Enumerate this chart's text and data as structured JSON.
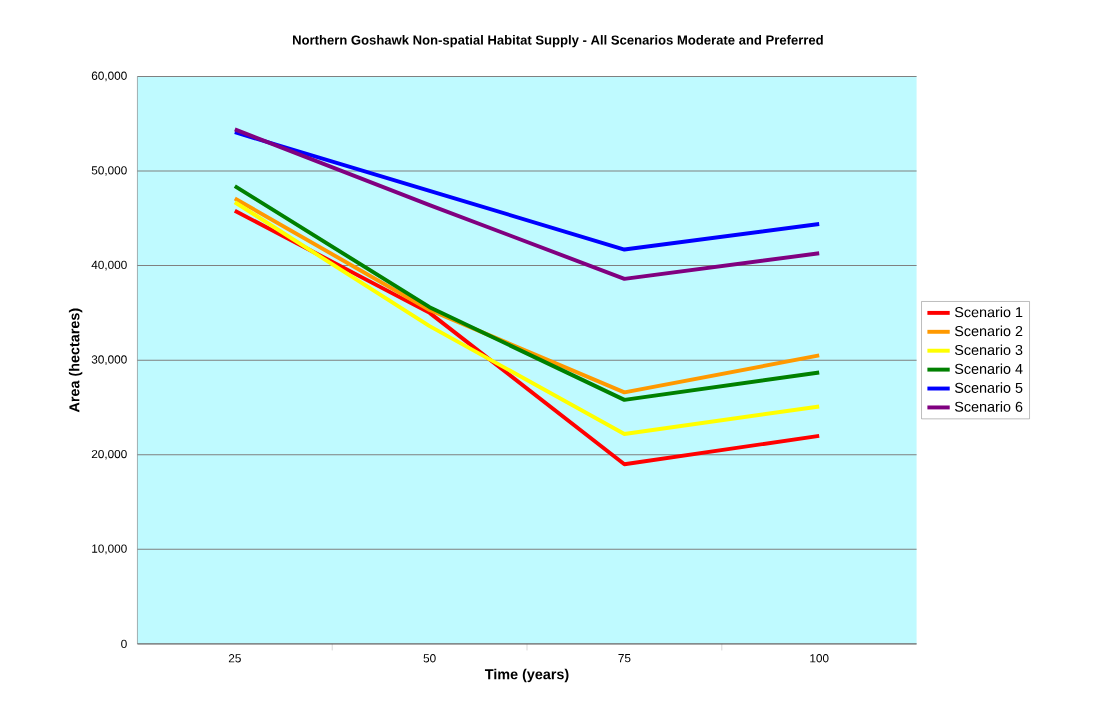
{
  "chart_data": {
    "type": "line",
    "title": "Northern Goshawk Non-spatial Habitat Supply - All Scenarios Moderate and Preferred",
    "xlabel": "Time (years)",
    "ylabel": "Area (hectares)",
    "categories": [
      "25",
      "50",
      "75",
      "100"
    ],
    "series": [
      {
        "name": "Scenario 1",
        "color": "#ff0000",
        "values": [
          45800,
          35000,
          19000,
          22000
        ]
      },
      {
        "name": "Scenario 2",
        "color": "#ff9900",
        "values": [
          47100,
          35300,
          26600,
          30500
        ]
      },
      {
        "name": "Scenario 3",
        "color": "#ffff00",
        "values": [
          46700,
          33600,
          22200,
          25100
        ]
      },
      {
        "name": "Scenario 4",
        "color": "#008000",
        "values": [
          48400,
          35600,
          25800,
          28700
        ]
      },
      {
        "name": "Scenario 5",
        "color": "#0000ff",
        "values": [
          54100,
          47900,
          41700,
          44400
        ]
      },
      {
        "name": "Scenario 6",
        "color": "#800080",
        "values": [
          54400,
          46400,
          38600,
          41300
        ]
      }
    ],
    "ylim": [
      0,
      60000
    ],
    "yticks": [
      {
        "value": 0,
        "label": "0"
      },
      {
        "value": 10000,
        "label": "10,000"
      },
      {
        "value": 20000,
        "label": "20,000"
      },
      {
        "value": 30000,
        "label": "30,000"
      },
      {
        "value": 40000,
        "label": "40,000"
      },
      {
        "value": 50000,
        "label": "50,000"
      },
      {
        "value": 60000,
        "label": "60,000"
      }
    ],
    "grid": "y",
    "legend": "right",
    "marker": "none",
    "line_style": "solid"
  }
}
